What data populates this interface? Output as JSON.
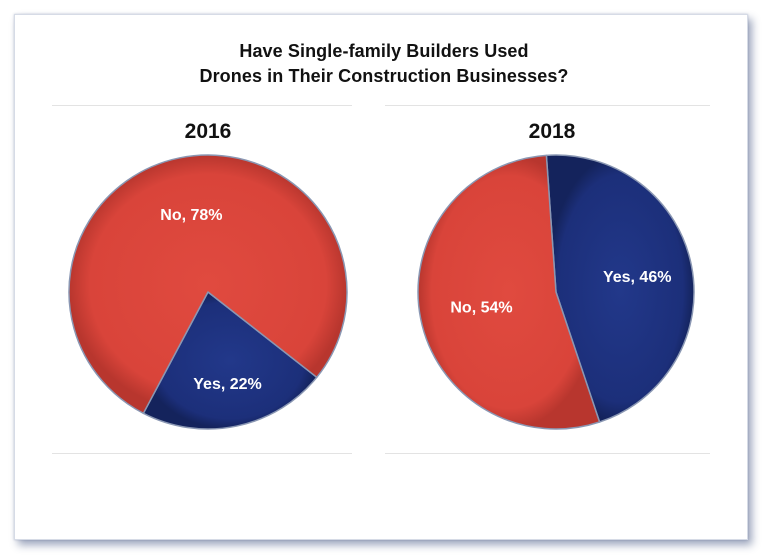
{
  "colors": {
    "no": "#d9443a",
    "yes": "#1c2f7a",
    "edge": "#8a97b3"
  },
  "chart_data": {
    "type": "pie",
    "title": "Have Single-family Builders Used Drones in Their Construction Businesses?",
    "title_lines": [
      "Have Single-family  Builders  Used",
      "Drones  in  Their  Construction  Businesses?"
    ],
    "charts": [
      {
        "name": "2016",
        "slices": [
          {
            "label": "No",
            "value": 78,
            "display": "No, 78%"
          },
          {
            "label": "Yes",
            "value": 22,
            "display": "Yes, 22%"
          }
        ]
      },
      {
        "name": "2018",
        "slices": [
          {
            "label": "No",
            "value": 54,
            "display": "No, 54%"
          },
          {
            "label": "Yes",
            "value": 46,
            "display": "Yes, 46%"
          }
        ]
      }
    ]
  }
}
